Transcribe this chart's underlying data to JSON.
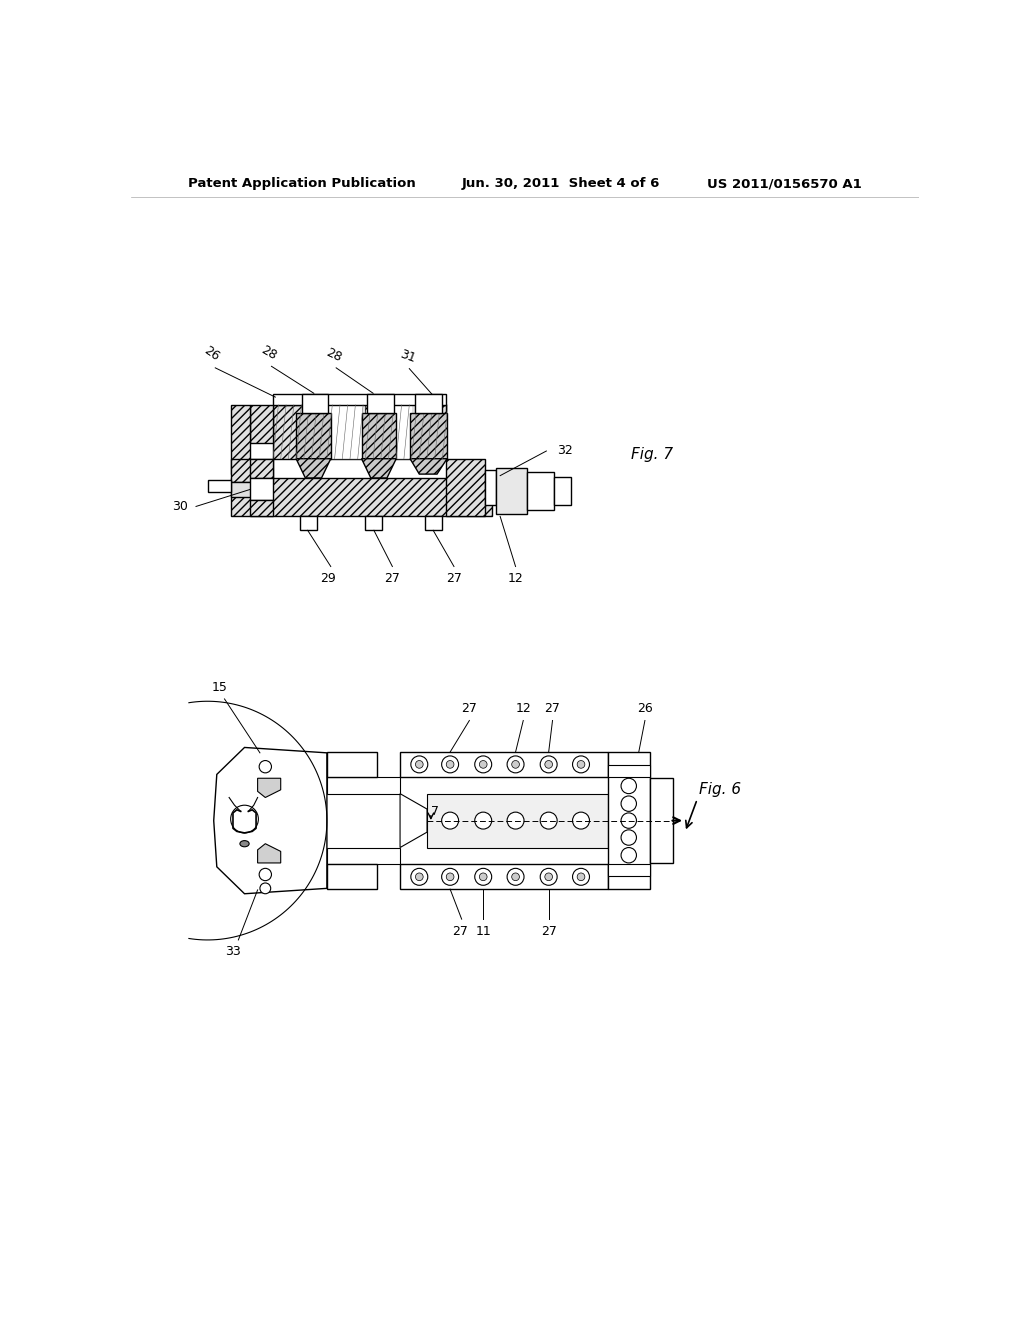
{
  "bg_color": "#ffffff",
  "header_left": "Patent Application Publication",
  "header_center": "Jun. 30, 2011  Sheet 4 of 6",
  "header_right": "US 2011/0156570 A1",
  "fig7_label": "Fig. 7",
  "fig6_label": "Fig. 6"
}
